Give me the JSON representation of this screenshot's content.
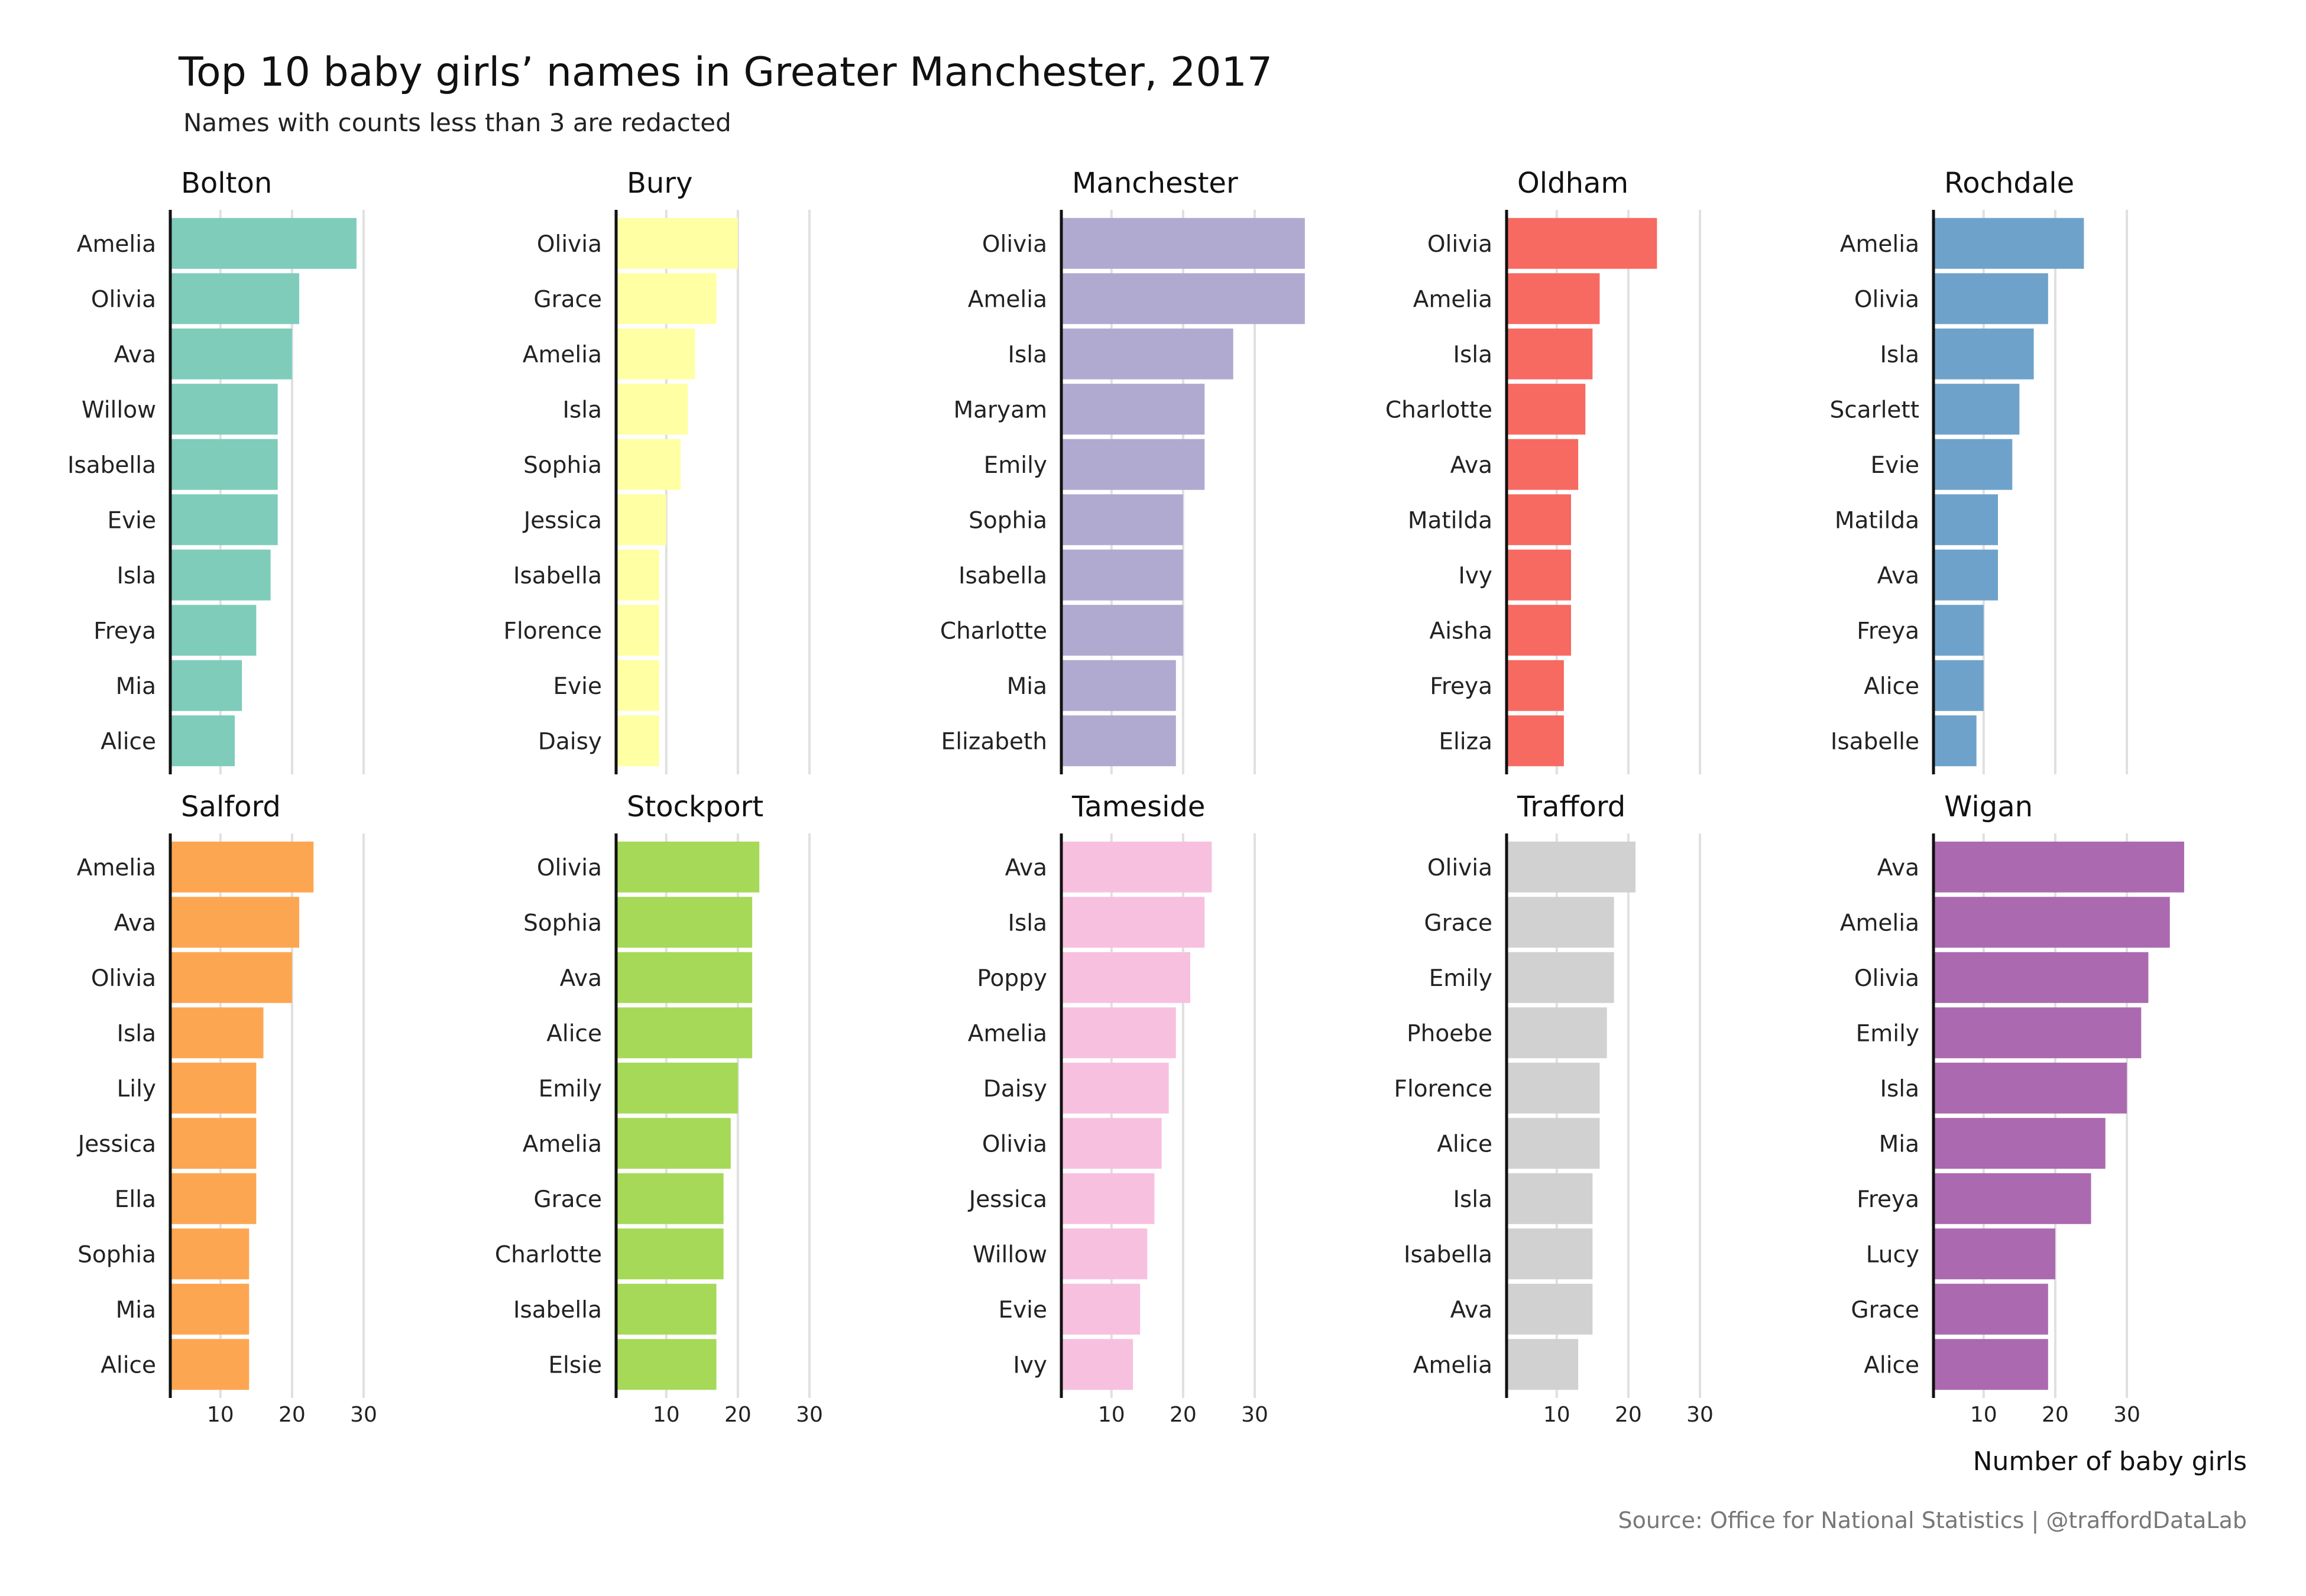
{
  "title": "Top 10 baby girls’ names in Greater Manchester, 2017",
  "subtitle": "Names with counts less than 3 are redacted",
  "caption": "Source: Office for National Statistics | @traffordDataLab",
  "chart_data": {
    "type": "bar",
    "orientation": "horizontal",
    "facet_layout": "2 rows x 5 columns",
    "xlabel": "Number of baby girls",
    "xlim": [
      3,
      38.5
    ],
    "xticks": [
      10,
      20,
      30
    ],
    "grid": true,
    "panels": [
      {
        "name": "Bolton",
        "color": "#7fccbb",
        "categories": [
          "Amelia",
          "Olivia",
          "Ava",
          "Willow",
          "Isabella",
          "Evie",
          "Isla",
          "Freya",
          "Mia",
          "Alice"
        ],
        "values": [
          29,
          21,
          20,
          18,
          18,
          18,
          17,
          15,
          13,
          12
        ]
      },
      {
        "name": "Bury",
        "color": "#ffffa3",
        "categories": [
          "Olivia",
          "Grace",
          "Amelia",
          "Isla",
          "Sophia",
          "Jessica",
          "Isabella",
          "Florence",
          "Evie",
          "Daisy"
        ],
        "values": [
          20,
          17,
          14,
          13,
          12,
          10,
          9,
          9,
          9,
          9
        ]
      },
      {
        "name": "Manchester",
        "color": "#b0aad1",
        "categories": [
          "Olivia",
          "Amelia",
          "Isla",
          "Maryam",
          "Emily",
          "Sophia",
          "Isabella",
          "Charlotte",
          "Mia",
          "Elizabeth"
        ],
        "values": [
          37,
          37,
          27,
          23,
          23,
          20,
          20,
          20,
          19,
          19
        ]
      },
      {
        "name": "Oldham",
        "color": "#f76a61",
        "categories": [
          "Olivia",
          "Amelia",
          "Isla",
          "Charlotte",
          "Ava",
          "Matilda",
          "Ivy",
          "Aisha",
          "Freya",
          "Eliza"
        ],
        "values": [
          24,
          16,
          15,
          14,
          13,
          12,
          12,
          12,
          11,
          11
        ]
      },
      {
        "name": "Rochdale",
        "color": "#6ea2ca",
        "categories": [
          "Amelia",
          "Olivia",
          "Isla",
          "Scarlett",
          "Evie",
          "Matilda",
          "Ava",
          "Freya",
          "Alice",
          "Isabelle"
        ],
        "values": [
          24,
          19,
          17,
          15,
          14,
          12,
          12,
          10,
          10,
          9
        ]
      },
      {
        "name": "Salford",
        "color": "#fda651",
        "categories": [
          "Amelia",
          "Ava",
          "Olivia",
          "Isla",
          "Lily",
          "Jessica",
          "Ella",
          "Sophia",
          "Mia",
          "Alice"
        ],
        "values": [
          23,
          21,
          20,
          16,
          15,
          15,
          15,
          14,
          14,
          14
        ]
      },
      {
        "name": "Stockport",
        "color": "#a5d957",
        "categories": [
          "Olivia",
          "Sophia",
          "Ava",
          "Alice",
          "Emily",
          "Amelia",
          "Grace",
          "Charlotte",
          "Isabella",
          "Elsie"
        ],
        "values": [
          23,
          22,
          22,
          22,
          20,
          19,
          18,
          18,
          17,
          17
        ]
      },
      {
        "name": "Tameside",
        "color": "#f8c0df",
        "categories": [
          "Ava",
          "Isla",
          "Poppy",
          "Amelia",
          "Daisy",
          "Olivia",
          "Jessica",
          "Willow",
          "Evie",
          "Ivy"
        ],
        "values": [
          24,
          23,
          21,
          19,
          18,
          17,
          16,
          15,
          14,
          13
        ]
      },
      {
        "name": "Trafford",
        "color": "#d1d1d1",
        "categories": [
          "Olivia",
          "Grace",
          "Emily",
          "Phoebe",
          "Florence",
          "Alice",
          "Isla",
          "Isabella",
          "Ava",
          "Amelia"
        ],
        "values": [
          21,
          18,
          18,
          17,
          16,
          16,
          15,
          15,
          15,
          13
        ]
      },
      {
        "name": "Wigan",
        "color": "#ab69b0",
        "categories": [
          "Ava",
          "Amelia",
          "Olivia",
          "Emily",
          "Isla",
          "Mia",
          "Freya",
          "Lucy",
          "Grace",
          "Alice"
        ],
        "values": [
          38,
          36,
          33,
          32,
          30,
          27,
          25,
          20,
          19,
          19
        ]
      }
    ]
  }
}
